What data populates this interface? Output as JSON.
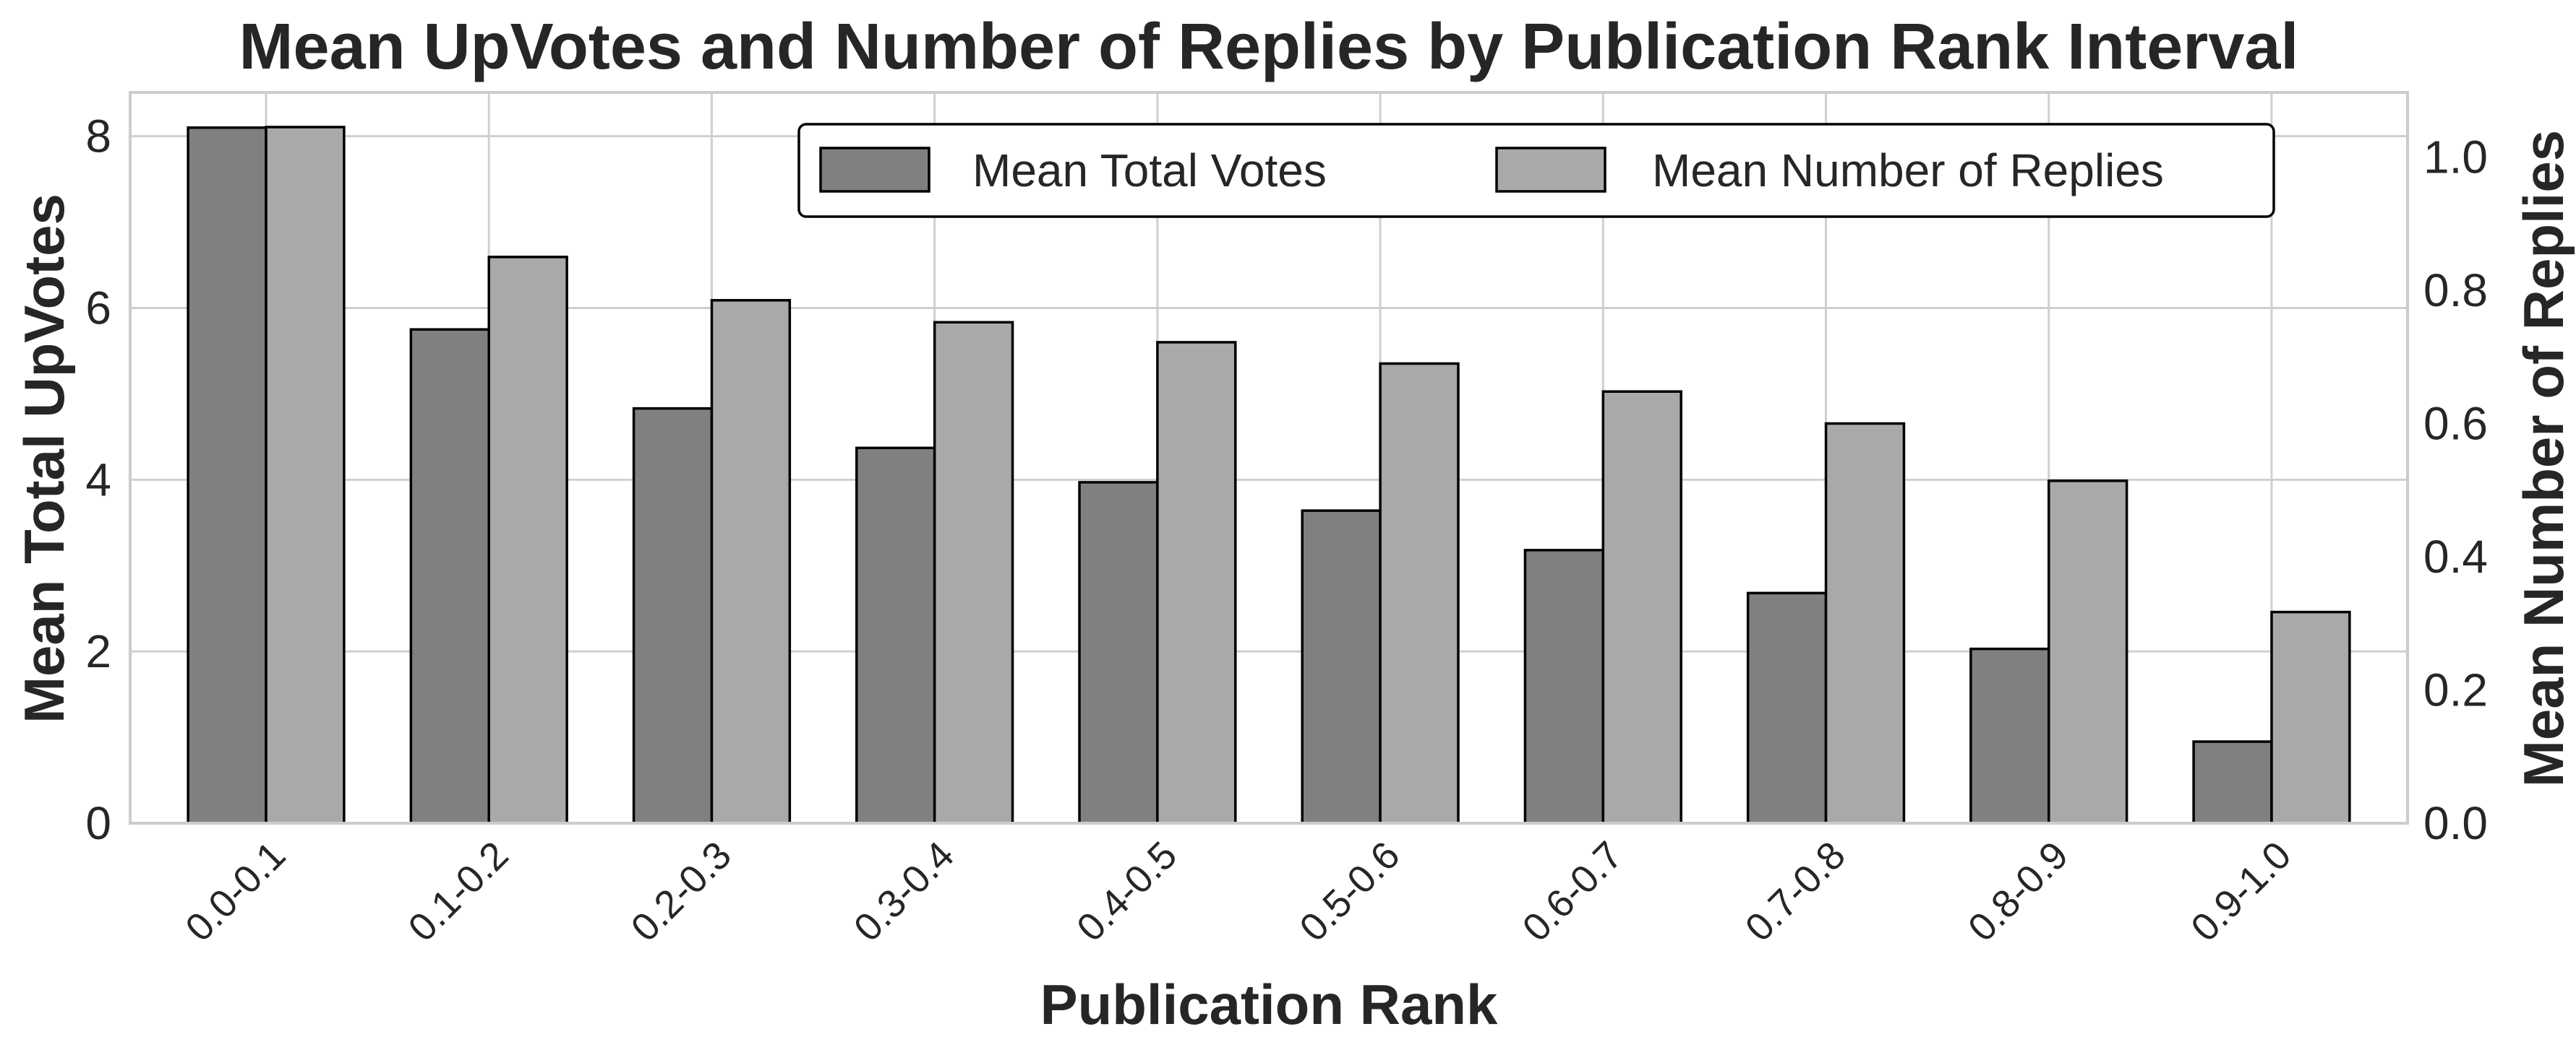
{
  "chart_data": {
    "type": "bar",
    "title": "Mean UpVotes and Number of Replies by Publication Rank Interval",
    "xlabel": "Publication Rank",
    "ylabel_left": "Mean Total UpVotes",
    "ylabel_right": "Mean Number of Replies",
    "categories": [
      "0.0-0.1",
      "0.1-0.2",
      "0.2-0.3",
      "0.3-0.4",
      "0.4-0.5",
      "0.5-0.6",
      "0.6-0.7",
      "0.7-0.8",
      "0.8-0.9",
      "0.9-1.0"
    ],
    "series": [
      {
        "name": "Mean Total Votes",
        "axis": "left",
        "color": "#808080",
        "values": [
          8.1,
          5.75,
          4.83,
          4.37,
          3.97,
          3.64,
          3.18,
          2.68,
          2.03,
          0.95
        ]
      },
      {
        "name": "Mean Number of Replies",
        "axis": "right",
        "color": "#a9a9a9",
        "values": [
          1.045,
          0.85,
          0.785,
          0.752,
          0.722,
          0.69,
          0.648,
          0.6,
          0.514,
          0.317
        ]
      }
    ],
    "ylim_left": [
      0,
      8.51
    ],
    "ylim_right": [
      0,
      1.097
    ],
    "yticks_left": [
      "0",
      "2",
      "4",
      "6",
      "8"
    ],
    "yticks_right": [
      "0.0",
      "0.2",
      "0.4",
      "0.6",
      "0.8",
      "1.0"
    ],
    "grid": true,
    "legend_position": "top-right"
  }
}
